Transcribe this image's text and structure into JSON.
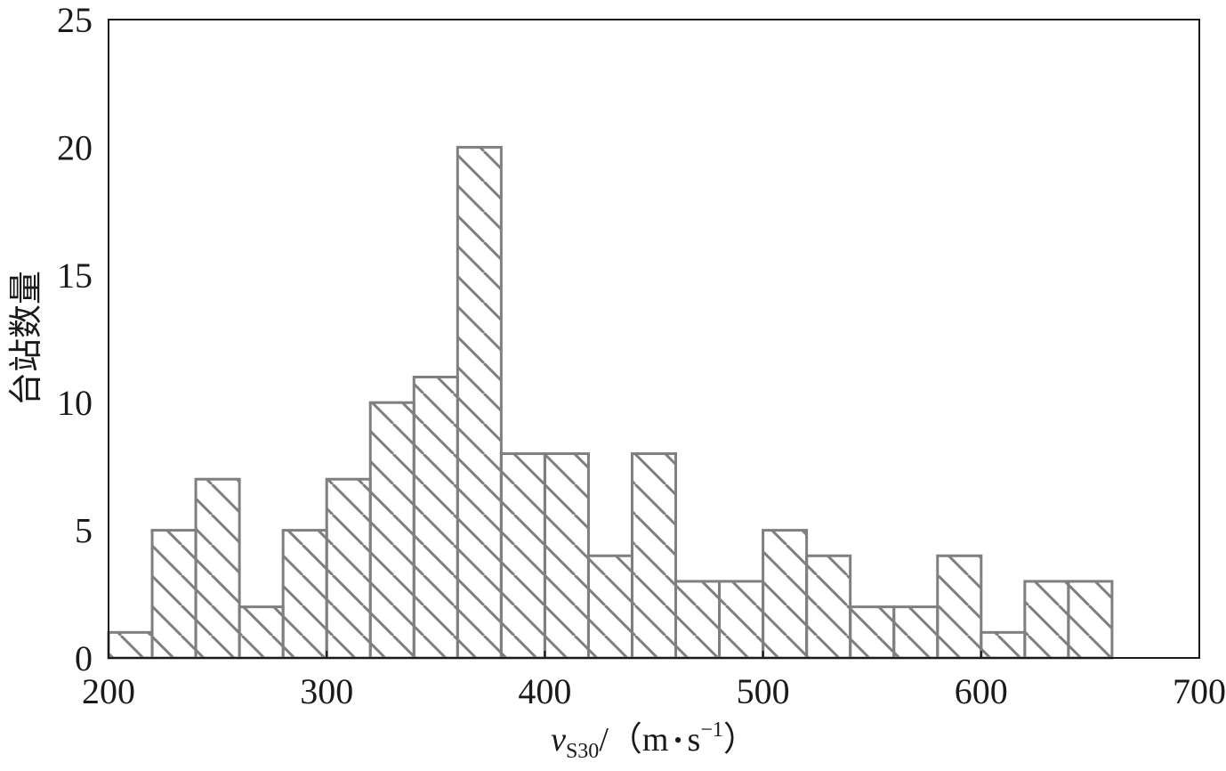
{
  "chart_data": {
    "type": "bar",
    "bin_edges": [
      200,
      220,
      240,
      260,
      280,
      300,
      320,
      340,
      360,
      380,
      400,
      420,
      440,
      460,
      480,
      500,
      520,
      540,
      560,
      580,
      600,
      620,
      640,
      660
    ],
    "values": [
      1,
      5,
      7,
      2,
      5,
      7,
      10,
      11,
      20,
      8,
      8,
      4,
      8,
      3,
      3,
      5,
      4,
      2,
      2,
      4,
      1,
      3,
      3
    ],
    "xlim": [
      200,
      700
    ],
    "ylim": [
      0,
      25
    ],
    "xticks": [
      200,
      300,
      400,
      500,
      600,
      700
    ],
    "yticks": [
      0,
      5,
      10,
      15,
      20,
      25
    ],
    "xlabel": {
      "var": "v",
      "sub": "S30",
      "unit_open": "/（m",
      "dot": "•",
      "unit_s": "s",
      "sup": "−1",
      "unit_close": "）"
    },
    "ylabel": "台站数量",
    "grid": false,
    "bar_fill": "hatch-diagonal",
    "colors": {
      "bar_edge": "#7f7f7f",
      "hatch": "#7f7f7f",
      "axis": "#1a1a1a"
    }
  }
}
